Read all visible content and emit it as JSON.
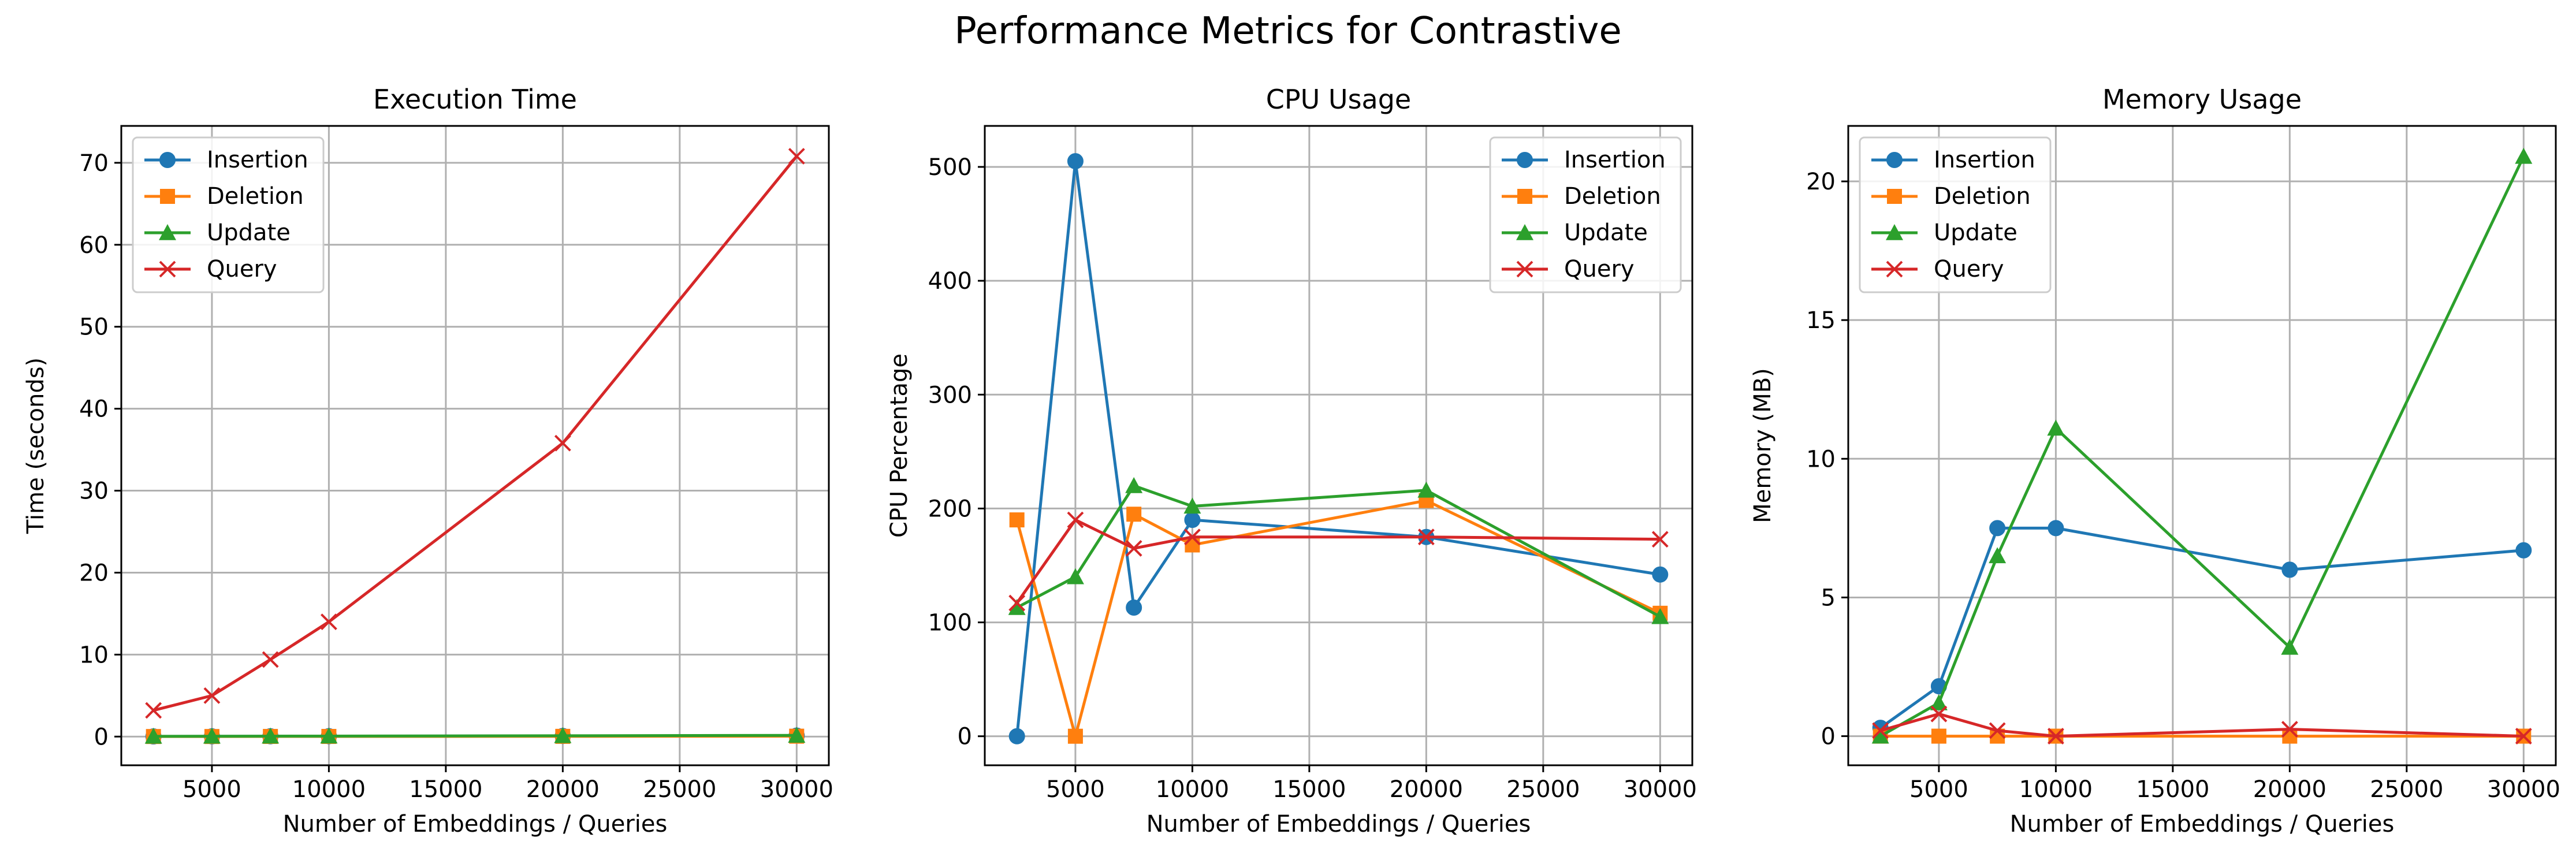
{
  "figure": {
    "title": "Performance Metrics for Contrastive"
  },
  "colors": {
    "Insertion": "#1f77b4",
    "Deletion": "#ff7f0e",
    "Update": "#2ca02c",
    "Query": "#d62728",
    "grid": "#b0b0b0"
  },
  "chart_data": [
    {
      "type": "line",
      "title": "Execution Time",
      "xlabel": "Number of Embeddings / Queries",
      "ylabel": "Time (seconds)",
      "x": [
        2500,
        5000,
        7500,
        10000,
        20000,
        30000
      ],
      "xlim": [
        1125,
        31375
      ],
      "ylim": [
        -3.5,
        74.5
      ],
      "xticks": [
        5000,
        10000,
        15000,
        20000,
        25000,
        30000
      ],
      "yticks": [
        0,
        10,
        20,
        30,
        40,
        50,
        60,
        70
      ],
      "grid": true,
      "legend_position": "upper left",
      "series": [
        {
          "name": "Insertion",
          "marker": "circle",
          "values": [
            0.02,
            0.03,
            0.04,
            0.05,
            0.08,
            0.12
          ]
        },
        {
          "name": "Deletion",
          "marker": "square",
          "values": [
            0.01,
            0.01,
            0.02,
            0.02,
            0.03,
            0.05
          ]
        },
        {
          "name": "Update",
          "marker": "triangle",
          "values": [
            0.03,
            0.04,
            0.05,
            0.06,
            0.1,
            0.15
          ]
        },
        {
          "name": "Query",
          "marker": "x",
          "values": [
            3.2,
            5.0,
            9.4,
            14.0,
            35.8,
            70.8
          ]
        }
      ]
    },
    {
      "type": "line",
      "title": "CPU Usage",
      "xlabel": "Number of Embeddings / Queries",
      "ylabel": "CPU Percentage",
      "x": [
        2500,
        5000,
        7500,
        10000,
        20000,
        30000
      ],
      "xlim": [
        1125,
        31375
      ],
      "ylim": [
        -25.5,
        536
      ],
      "xticks": [
        5000,
        10000,
        15000,
        20000,
        25000,
        30000
      ],
      "yticks": [
        0,
        100,
        200,
        300,
        400,
        500
      ],
      "grid": true,
      "legend_position": "upper right",
      "series": [
        {
          "name": "Insertion",
          "marker": "circle",
          "values": [
            0,
            505,
            113,
            190,
            175,
            142
          ]
        },
        {
          "name": "Deletion",
          "marker": "square",
          "values": [
            190,
            0,
            195,
            168,
            207,
            108
          ]
        },
        {
          "name": "Update",
          "marker": "triangle",
          "values": [
            113,
            140,
            220,
            202,
            216,
            105
          ]
        },
        {
          "name": "Query",
          "marker": "x",
          "values": [
            117,
            190,
            165,
            175,
            175,
            173
          ]
        }
      ]
    },
    {
      "type": "line",
      "title": "Memory Usage",
      "xlabel": "Number of Embeddings / Queries",
      "ylabel": "Memory (MB)",
      "x": [
        2500,
        5000,
        7500,
        10000,
        20000,
        30000
      ],
      "xlim": [
        1125,
        31375
      ],
      "ylim": [
        -1.05,
        22.0
      ],
      "xticks": [
        5000,
        10000,
        15000,
        20000,
        25000,
        30000
      ],
      "yticks": [
        0,
        5,
        10,
        15,
        20
      ],
      "grid": true,
      "legend_position": "upper left",
      "series": [
        {
          "name": "Insertion",
          "marker": "circle",
          "values": [
            0.3,
            1.8,
            7.5,
            7.5,
            6.0,
            6.7
          ]
        },
        {
          "name": "Deletion",
          "marker": "square",
          "values": [
            0,
            0,
            0,
            0,
            0,
            0
          ]
        },
        {
          "name": "Update",
          "marker": "triangle",
          "values": [
            0,
            1.2,
            6.5,
            11.1,
            3.2,
            20.9
          ]
        },
        {
          "name": "Query",
          "marker": "x",
          "values": [
            0.2,
            0.8,
            0.2,
            0,
            0.25,
            0
          ]
        }
      ]
    }
  ]
}
